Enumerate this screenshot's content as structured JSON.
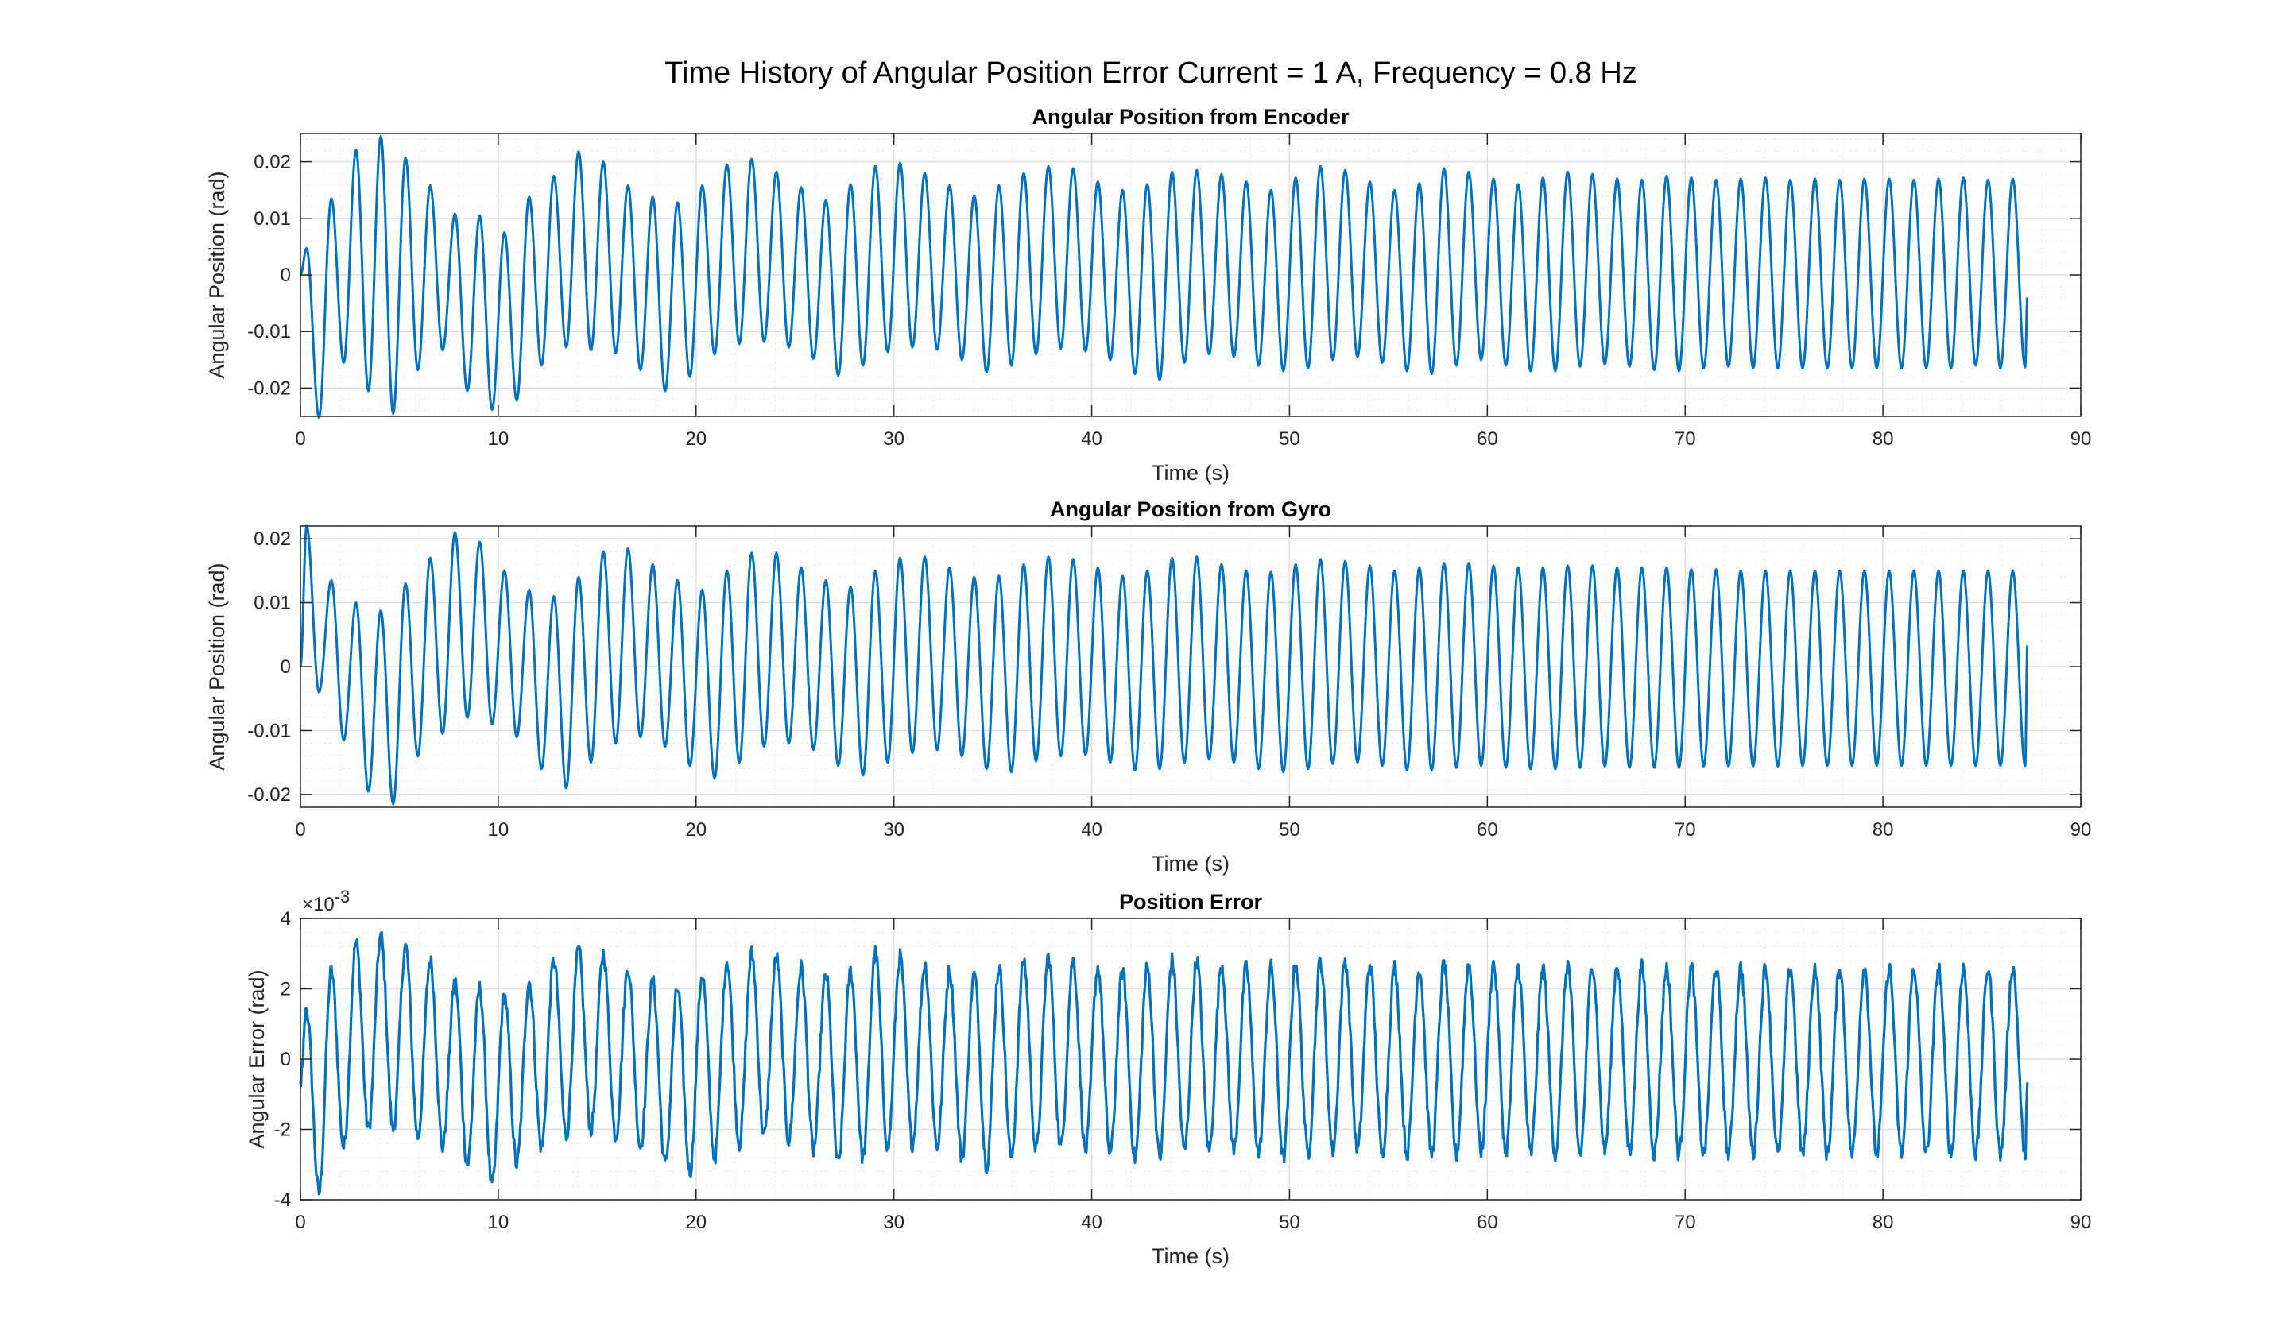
{
  "figure_title": "Time History of Angular Position Error Current = 1 A, Frequency = 0.8 Hz",
  "colors": {
    "series": "#0072BD",
    "axes": "#262626",
    "grid": "#DFDFDF",
    "background": "#FFFFFF"
  },
  "chart_data": [
    {
      "type": "line",
      "title": "Angular Position from Encoder",
      "xlabel": "Time (s)",
      "ylabel": "Angular Position (rad)",
      "xlim": [
        0,
        90
      ],
      "ylim": [
        -0.025,
        0.025
      ],
      "xticks": [
        0,
        10,
        20,
        30,
        40,
        50,
        60,
        70,
        80,
        90
      ],
      "xtick_labels": [
        "0",
        "10",
        "20",
        "30",
        "40",
        "50",
        "60",
        "70",
        "80",
        "90"
      ],
      "yticks": [
        -0.02,
        -0.01,
        0,
        0.01,
        0.02
      ],
      "ytick_labels": [
        "-0.02",
        "-0.01",
        "0",
        "0.01",
        "0.02"
      ],
      "exponent_label": "",
      "grid": true,
      "minor_grid": true,
      "series": [
        {
          "line_width": 3,
          "x_end": 87.3,
          "cycle_period_s": 1.25,
          "start_value": 0,
          "end_value": -0.004,
          "noise_amplitude": 0,
          "cycles": [
            [
              0.0047,
              -0.0252
            ],
            [
              0.0135,
              -0.0155
            ],
            [
              0.0221,
              -0.0205
            ],
            [
              0.0245,
              -0.0245
            ],
            [
              0.0207,
              -0.0168
            ],
            [
              0.0158,
              -0.0133
            ],
            [
              0.0108,
              -0.0205
            ],
            [
              0.0105,
              -0.0238
            ],
            [
              0.0075,
              -0.0222
            ],
            [
              0.0138,
              -0.016
            ],
            [
              0.0175,
              -0.0128
            ],
            [
              0.0218,
              -0.0133
            ],
            [
              0.02,
              -0.0138
            ],
            [
              0.0158,
              -0.0168
            ],
            [
              0.0138,
              -0.0205
            ],
            [
              0.0128,
              -0.018
            ],
            [
              0.0158,
              -0.014
            ],
            [
              0.0195,
              -0.0122
            ],
            [
              0.0205,
              -0.0118
            ],
            [
              0.0182,
              -0.0128
            ],
            [
              0.0155,
              -0.0148
            ],
            [
              0.0132,
              -0.0178
            ],
            [
              0.016,
              -0.016
            ],
            [
              0.0192,
              -0.0136
            ],
            [
              0.0198,
              -0.0128
            ],
            [
              0.018,
              -0.0132
            ],
            [
              0.0158,
              -0.015
            ],
            [
              0.014,
              -0.0172
            ],
            [
              0.0158,
              -0.016
            ],
            [
              0.018,
              -0.014
            ],
            [
              0.0192,
              -0.013
            ],
            [
              0.0188,
              -0.0135
            ],
            [
              0.0165,
              -0.015
            ],
            [
              0.015,
              -0.0175
            ],
            [
              0.016,
              -0.0186
            ],
            [
              0.0182,
              -0.0155
            ],
            [
              0.0185,
              -0.014
            ],
            [
              0.0178,
              -0.0145
            ],
            [
              0.0165,
              -0.016
            ],
            [
              0.015,
              -0.017
            ],
            [
              0.0172,
              -0.0165
            ],
            [
              0.0192,
              -0.015
            ],
            [
              0.0185,
              -0.0145
            ],
            [
              0.0165,
              -0.0155
            ],
            [
              0.015,
              -0.017
            ],
            [
              0.0162,
              -0.0175
            ],
            [
              0.0188,
              -0.016
            ],
            [
              0.0182,
              -0.015
            ],
            [
              0.017,
              -0.016
            ],
            [
              0.016,
              -0.017
            ],
            [
              0.0172,
              -0.017
            ],
            [
              0.0182,
              -0.0162
            ],
            [
              0.0178,
              -0.0158
            ],
            [
              0.017,
              -0.0162
            ],
            [
              0.0168,
              -0.0168
            ],
            [
              0.0175,
              -0.017
            ],
            [
              0.0172,
              -0.0165
            ],
            [
              0.0168,
              -0.0162
            ],
            [
              0.017,
              -0.0165
            ],
            [
              0.0172,
              -0.0165
            ],
            [
              0.0168,
              -0.0165
            ],
            [
              0.017,
              -0.0165
            ],
            [
              0.0168,
              -0.0165
            ],
            [
              0.017,
              -0.0165
            ],
            [
              0.017,
              -0.0165
            ],
            [
              0.0168,
              -0.0165
            ],
            [
              0.017,
              -0.0165
            ],
            [
              0.0172,
              -0.016
            ],
            [
              0.0168,
              -0.0165
            ],
            [
              0.017,
              -0.0163
            ]
          ]
        }
      ]
    },
    {
      "type": "line",
      "title": "Angular Position from Gyro",
      "xlabel": "Time (s)",
      "ylabel": "Angular Position (rad)",
      "xlim": [
        0,
        90
      ],
      "ylim": [
        -0.022,
        0.022
      ],
      "xticks": [
        0,
        10,
        20,
        30,
        40,
        50,
        60,
        70,
        80,
        90
      ],
      "xtick_labels": [
        "0",
        "10",
        "20",
        "30",
        "40",
        "50",
        "60",
        "70",
        "80",
        "90"
      ],
      "yticks": [
        -0.02,
        -0.01,
        0,
        0.01,
        0.02
      ],
      "ytick_labels": [
        "-0.02",
        "-0.01",
        "0",
        "0.01",
        "0.02"
      ],
      "exponent_label": "",
      "grid": true,
      "minor_grid": true,
      "series": [
        {
          "line_width": 3,
          "x_end": 87.3,
          "cycle_period_s": 1.25,
          "start_value": 0,
          "end_value": 0.0033,
          "noise_amplitude": 0,
          "cycles": [
            [
              0.022,
              -0.004
            ],
            [
              0.0135,
              -0.0115
            ],
            [
              0.01,
              -0.0195
            ],
            [
              0.0088,
              -0.0215
            ],
            [
              0.013,
              -0.014
            ],
            [
              0.017,
              -0.0105
            ],
            [
              0.021,
              -0.008
            ],
            [
              0.0195,
              -0.009
            ],
            [
              0.015,
              -0.011
            ],
            [
              0.012,
              -0.016
            ],
            [
              0.011,
              -0.019
            ],
            [
              0.014,
              -0.015
            ],
            [
              0.018,
              -0.012
            ],
            [
              0.0185,
              -0.011
            ],
            [
              0.016,
              -0.0125
            ],
            [
              0.0135,
              -0.0155
            ],
            [
              0.012,
              -0.0175
            ],
            [
              0.015,
              -0.015
            ],
            [
              0.0178,
              -0.0125
            ],
            [
              0.0178,
              -0.012
            ],
            [
              0.0155,
              -0.013
            ],
            [
              0.0135,
              -0.0155
            ],
            [
              0.0125,
              -0.017
            ],
            [
              0.015,
              -0.015
            ],
            [
              0.017,
              -0.0135
            ],
            [
              0.0172,
              -0.013
            ],
            [
              0.0155,
              -0.014
            ],
            [
              0.014,
              -0.016
            ],
            [
              0.0142,
              -0.0165
            ],
            [
              0.016,
              -0.0148
            ],
            [
              0.0172,
              -0.014
            ],
            [
              0.0168,
              -0.0138
            ],
            [
              0.0155,
              -0.015
            ],
            [
              0.0142,
              -0.0162
            ],
            [
              0.015,
              -0.016
            ],
            [
              0.017,
              -0.015
            ],
            [
              0.0172,
              -0.0145
            ],
            [
              0.016,
              -0.015
            ],
            [
              0.015,
              -0.016
            ],
            [
              0.0148,
              -0.0165
            ],
            [
              0.016,
              -0.016
            ],
            [
              0.0168,
              -0.0152
            ],
            [
              0.0165,
              -0.015
            ],
            [
              0.0158,
              -0.0155
            ],
            [
              0.015,
              -0.0162
            ],
            [
              0.0155,
              -0.0162
            ],
            [
              0.0162,
              -0.0158
            ],
            [
              0.0162,
              -0.0155
            ],
            [
              0.0158,
              -0.0158
            ],
            [
              0.0155,
              -0.016
            ],
            [
              0.0155,
              -0.016
            ],
            [
              0.0158,
              -0.0158
            ],
            [
              0.0158,
              -0.0156
            ],
            [
              0.0155,
              -0.0158
            ],
            [
              0.0155,
              -0.0158
            ],
            [
              0.0155,
              -0.0158
            ],
            [
              0.0152,
              -0.0156
            ],
            [
              0.0152,
              -0.0156
            ],
            [
              0.015,
              -0.0156
            ],
            [
              0.015,
              -0.0156
            ],
            [
              0.015,
              -0.0155
            ],
            [
              0.015,
              -0.0155
            ],
            [
              0.015,
              -0.0155
            ],
            [
              0.015,
              -0.0155
            ],
            [
              0.015,
              -0.0155
            ],
            [
              0.015,
              -0.0155
            ],
            [
              0.015,
              -0.0155
            ],
            [
              0.015,
              -0.0155
            ],
            [
              0.015,
              -0.0155
            ],
            [
              0.015,
              -0.0155
            ]
          ]
        }
      ]
    },
    {
      "type": "line",
      "title": "Position Error",
      "xlabel": "Time (s)",
      "ylabel": "Angular Error (rad)",
      "xlim": [
        0,
        90
      ],
      "ylim": [
        -0.004,
        0.004
      ],
      "xticks": [
        0,
        10,
        20,
        30,
        40,
        50,
        60,
        70,
        80,
        90
      ],
      "xtick_labels": [
        "0",
        "10",
        "20",
        "30",
        "40",
        "50",
        "60",
        "70",
        "80",
        "90"
      ],
      "yticks": [
        -0.004,
        -0.002,
        0,
        0.002,
        0.004
      ],
      "ytick_labels": [
        "-4",
        "-2",
        "0",
        "2",
        "4"
      ],
      "exponent_label": "×10",
      "exponent_power": "-3",
      "grid": true,
      "minor_grid": true,
      "series": [
        {
          "line_width": 3.2,
          "x_end": 87.3,
          "cycle_period_s": 1.25,
          "start_value": -0.0007,
          "end_value": -0.0008,
          "noise_amplitude": 0.0004,
          "cycles": [
            [
              0.0014,
              -0.0038
            ],
            [
              0.0025,
              -0.0025
            ],
            [
              0.0033,
              -0.002
            ],
            [
              0.0035,
              -0.002
            ],
            [
              0.0032,
              -0.0022
            ],
            [
              0.0028,
              -0.0025
            ],
            [
              0.0022,
              -0.003
            ],
            [
              0.002,
              -0.0036
            ],
            [
              0.0018,
              -0.003
            ],
            [
              0.0022,
              -0.0025
            ],
            [
              0.0028,
              -0.0022
            ],
            [
              0.0031,
              -0.002
            ],
            [
              0.003,
              -0.0022
            ],
            [
              0.0026,
              -0.0025
            ],
            [
              0.0022,
              -0.003
            ],
            [
              0.002,
              -0.0032
            ],
            [
              0.0024,
              -0.0028
            ],
            [
              0.0028,
              -0.0024
            ],
            [
              0.003,
              -0.0022
            ],
            [
              0.0029,
              -0.0023
            ],
            [
              0.0026,
              -0.0026
            ],
            [
              0.0024,
              -0.003
            ],
            [
              0.0025,
              -0.0028
            ],
            [
              0.003,
              -0.0025
            ],
            [
              0.0029,
              -0.0024
            ],
            [
              0.0027,
              -0.0025
            ],
            [
              0.0025,
              -0.0028
            ],
            [
              0.0024,
              -0.003
            ],
            [
              0.0026,
              -0.0028
            ],
            [
              0.0028,
              -0.0026
            ],
            [
              0.0029,
              -0.0025
            ],
            [
              0.0028,
              -0.0026
            ],
            [
              0.0026,
              -0.0027
            ],
            [
              0.0025,
              -0.0028
            ],
            [
              0.0026,
              -0.0028
            ],
            [
              0.0028,
              -0.0026
            ],
            [
              0.0028,
              -0.0026
            ],
            [
              0.0027,
              -0.0026
            ],
            [
              0.0026,
              -0.0027
            ],
            [
              0.0026,
              -0.0028
            ],
            [
              0.0027,
              -0.0027
            ],
            [
              0.0028,
              -0.0026
            ],
            [
              0.0028,
              -0.0026
            ],
            [
              0.0027,
              -0.0027
            ],
            [
              0.0026,
              -0.0027
            ],
            [
              0.0026,
              -0.0027
            ],
            [
              0.0027,
              -0.0027
            ],
            [
              0.0027,
              -0.0026
            ],
            [
              0.0027,
              -0.0026
            ],
            [
              0.0026,
              -0.0027
            ],
            [
              0.0026,
              -0.0027
            ],
            [
              0.0027,
              -0.0027
            ],
            [
              0.0027,
              -0.0026
            ],
            [
              0.0027,
              -0.0026
            ],
            [
              0.0026,
              -0.0027
            ],
            [
              0.0026,
              -0.0027
            ],
            [
              0.0026,
              -0.0027
            ],
            [
              0.0026,
              -0.0027
            ],
            [
              0.0026,
              -0.0027
            ],
            [
              0.0026,
              -0.0027
            ],
            [
              0.0026,
              -0.0027
            ],
            [
              0.0026,
              -0.0027
            ],
            [
              0.0026,
              -0.0027
            ],
            [
              0.0026,
              -0.0027
            ],
            [
              0.0026,
              -0.0027
            ],
            [
              0.0026,
              -0.0027
            ],
            [
              0.0026,
              -0.0027
            ],
            [
              0.0026,
              -0.0027
            ],
            [
              0.0026,
              -0.0027
            ],
            [
              0.0026,
              -0.0027
            ]
          ]
        }
      ]
    }
  ]
}
